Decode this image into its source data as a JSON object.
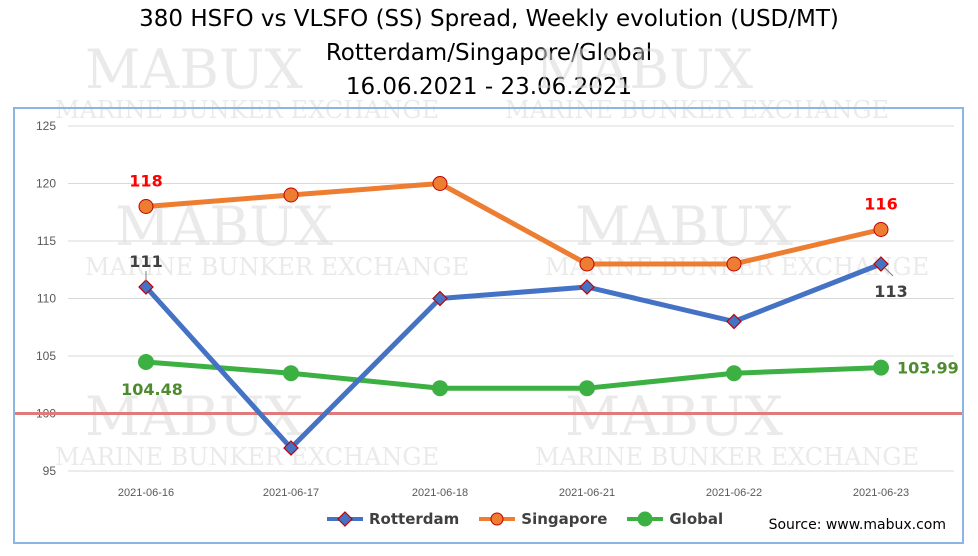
{
  "title_lines": [
    "380 HSFO vs VLSFO (SS) Spread, Weekly evolution (USD/MT)",
    "Rotterdam/Singapore/Global",
    "16.06.2021 - 23.06.2021"
  ],
  "source": "Source: www.mabux.com",
  "watermark": {
    "main": "MABUX",
    "sub": "MARINE BUNKER EXCHANGE"
  },
  "colors": {
    "rotterdam": "#4472c4",
    "rotterdam_marker_edge": "#c00000",
    "singapore": "#ed7d31",
    "singapore_marker_edge": "#c00000",
    "global": "#3cb043",
    "reference_line": "#e07b7b",
    "label_red": "#ff0000",
    "label_green": "#4e8a2e",
    "label_dark": "#404040"
  },
  "chart_data": {
    "type": "line",
    "categories": [
      "2021-06-16",
      "2021-06-17",
      "2021-06-18",
      "2021-06-21",
      "2021-06-22",
      "2021-06-23"
    ],
    "ylim": [
      95,
      125
    ],
    "yticks": [
      95,
      100,
      105,
      110,
      115,
      120,
      125
    ],
    "reference_line": 100,
    "grid": true,
    "legend_position": "bottom",
    "series": [
      {
        "name": "Rotterdam",
        "key": "rotterdam",
        "marker": "diamond",
        "values": [
          111,
          97,
          110,
          111,
          108,
          113
        ]
      },
      {
        "name": "Singapore",
        "key": "singapore",
        "marker": "circle",
        "values": [
          118,
          119,
          120,
          113,
          113,
          116
        ]
      },
      {
        "name": "Global",
        "key": "global",
        "marker": "circle",
        "values": [
          104.48,
          103.5,
          102.2,
          102.2,
          103.5,
          103.99
        ]
      }
    ],
    "data_labels": [
      {
        "series": "Singapore",
        "index": 0,
        "text": "118",
        "color_key": "label_red",
        "pos": "above"
      },
      {
        "series": "Singapore",
        "index": 5,
        "text": "116",
        "color_key": "label_red",
        "pos": "above"
      },
      {
        "series": "Rotterdam",
        "index": 0,
        "text": "111",
        "color_key": "label_dark",
        "pos": "above"
      },
      {
        "series": "Rotterdam",
        "index": 5,
        "text": "113",
        "color_key": "label_dark",
        "pos": "below"
      },
      {
        "series": "Global",
        "index": 0,
        "text": "104.48",
        "color_key": "label_green",
        "pos": "below"
      },
      {
        "series": "Global",
        "index": 5,
        "text": "103.99",
        "color_key": "label_green",
        "pos": "right"
      }
    ]
  }
}
